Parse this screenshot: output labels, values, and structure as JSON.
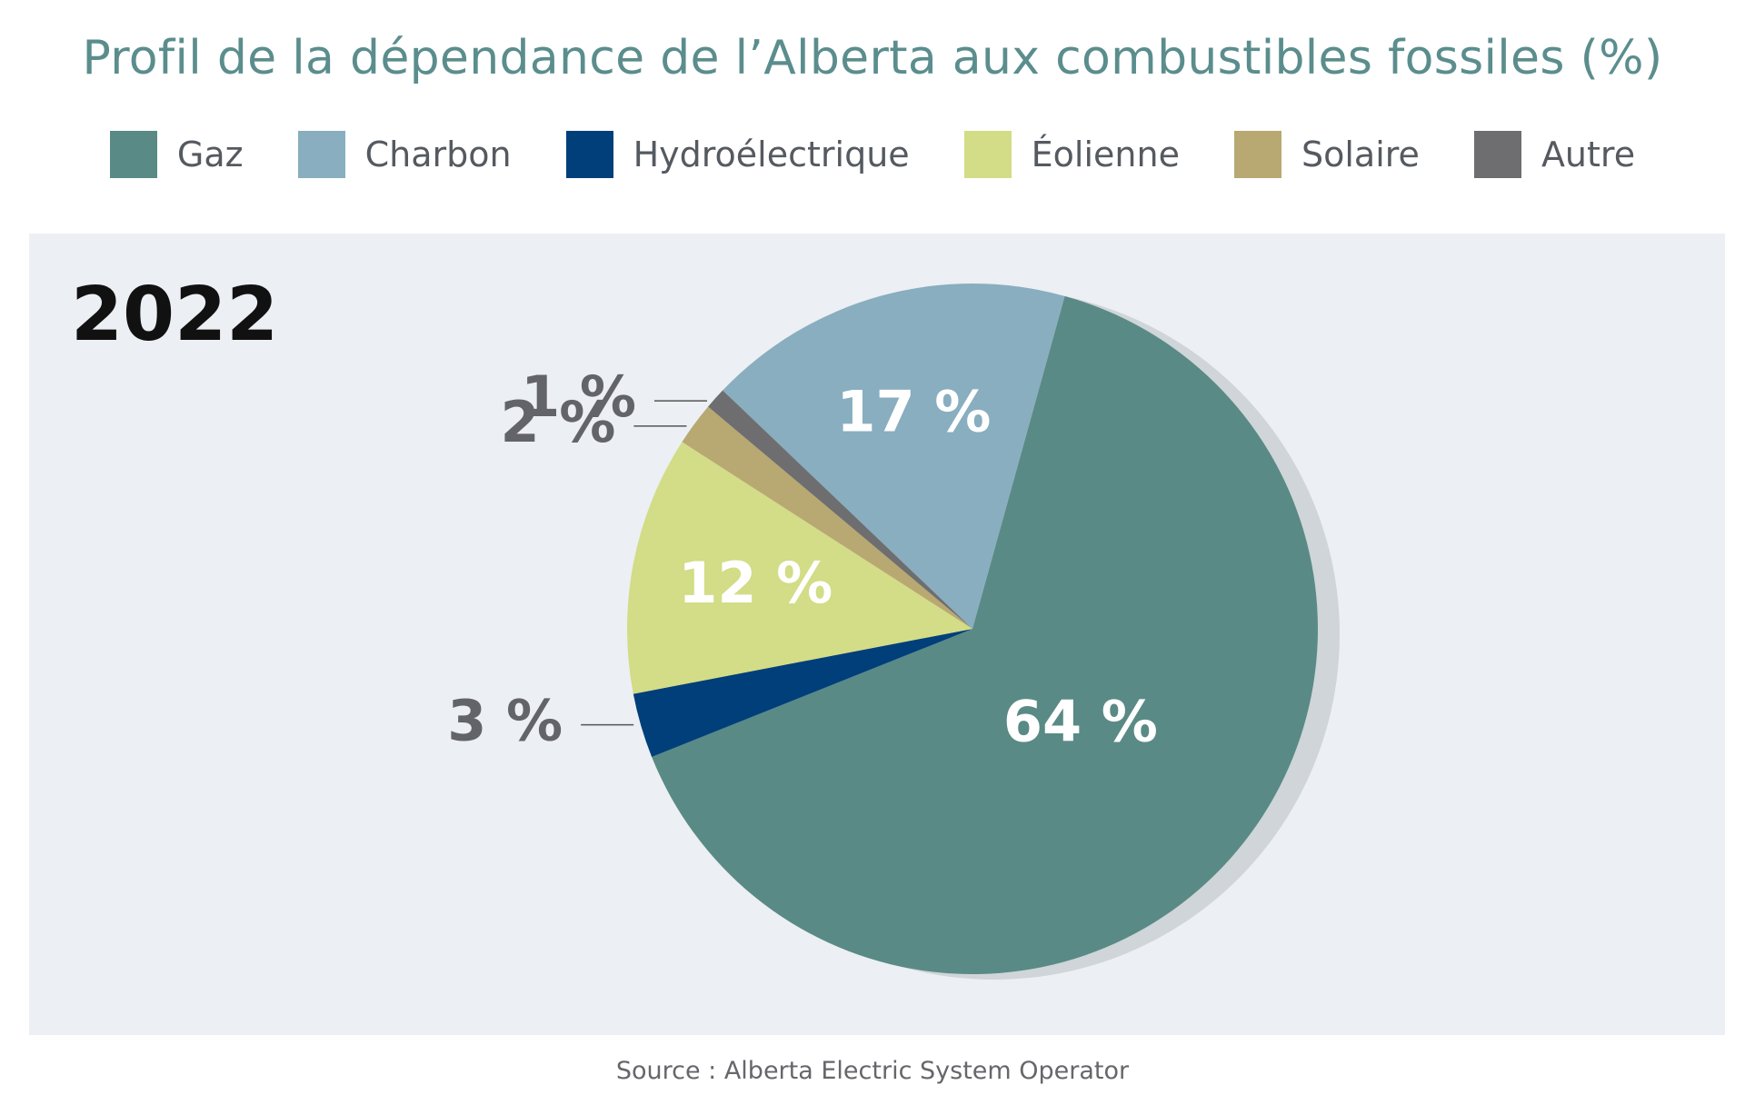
{
  "title": "Profil de la dépendance de l’Alberta aux combustibles fossiles (%)",
  "source": "Source : Alberta Electric System Operator",
  "year": "2022",
  "legend": [
    {
      "label": "Gaz",
      "color": "#5a8a85"
    },
    {
      "label": "Charbon",
      "color": "#88aebf"
    },
    {
      "label": "Hydroélectrique",
      "color": "#003f7a"
    },
    {
      "label": "Éolienne",
      "color": "#d3dc86"
    },
    {
      "label": "Solaire",
      "color": "#b8a872"
    },
    {
      "label": "Autre",
      "color": "#6e6e70"
    }
  ],
  "chart_data": {
    "type": "pie",
    "title": "Profil de la dépendance de l’Alberta aux combustibles fossiles (%)",
    "year": "2022",
    "legend_position": "top",
    "slices": [
      {
        "label": "Gaz",
        "value": 64,
        "display": "64 %",
        "color": "#5a8a85"
      },
      {
        "label": "Hydroélectrique",
        "value": 3,
        "display": "3 %",
        "color": "#003f7a"
      },
      {
        "label": "Éolienne",
        "value": 12,
        "display": "12 %",
        "color": "#d3dc86"
      },
      {
        "label": "Solaire",
        "value": 2,
        "display": "2 %",
        "color": "#b8a872"
      },
      {
        "label": "Autre",
        "value": 1,
        "display": "1 %",
        "color": "#6e6e70"
      },
      {
        "label": "Charbon",
        "value": 17,
        "display": "17 %",
        "color": "#88aebf"
      }
    ]
  }
}
